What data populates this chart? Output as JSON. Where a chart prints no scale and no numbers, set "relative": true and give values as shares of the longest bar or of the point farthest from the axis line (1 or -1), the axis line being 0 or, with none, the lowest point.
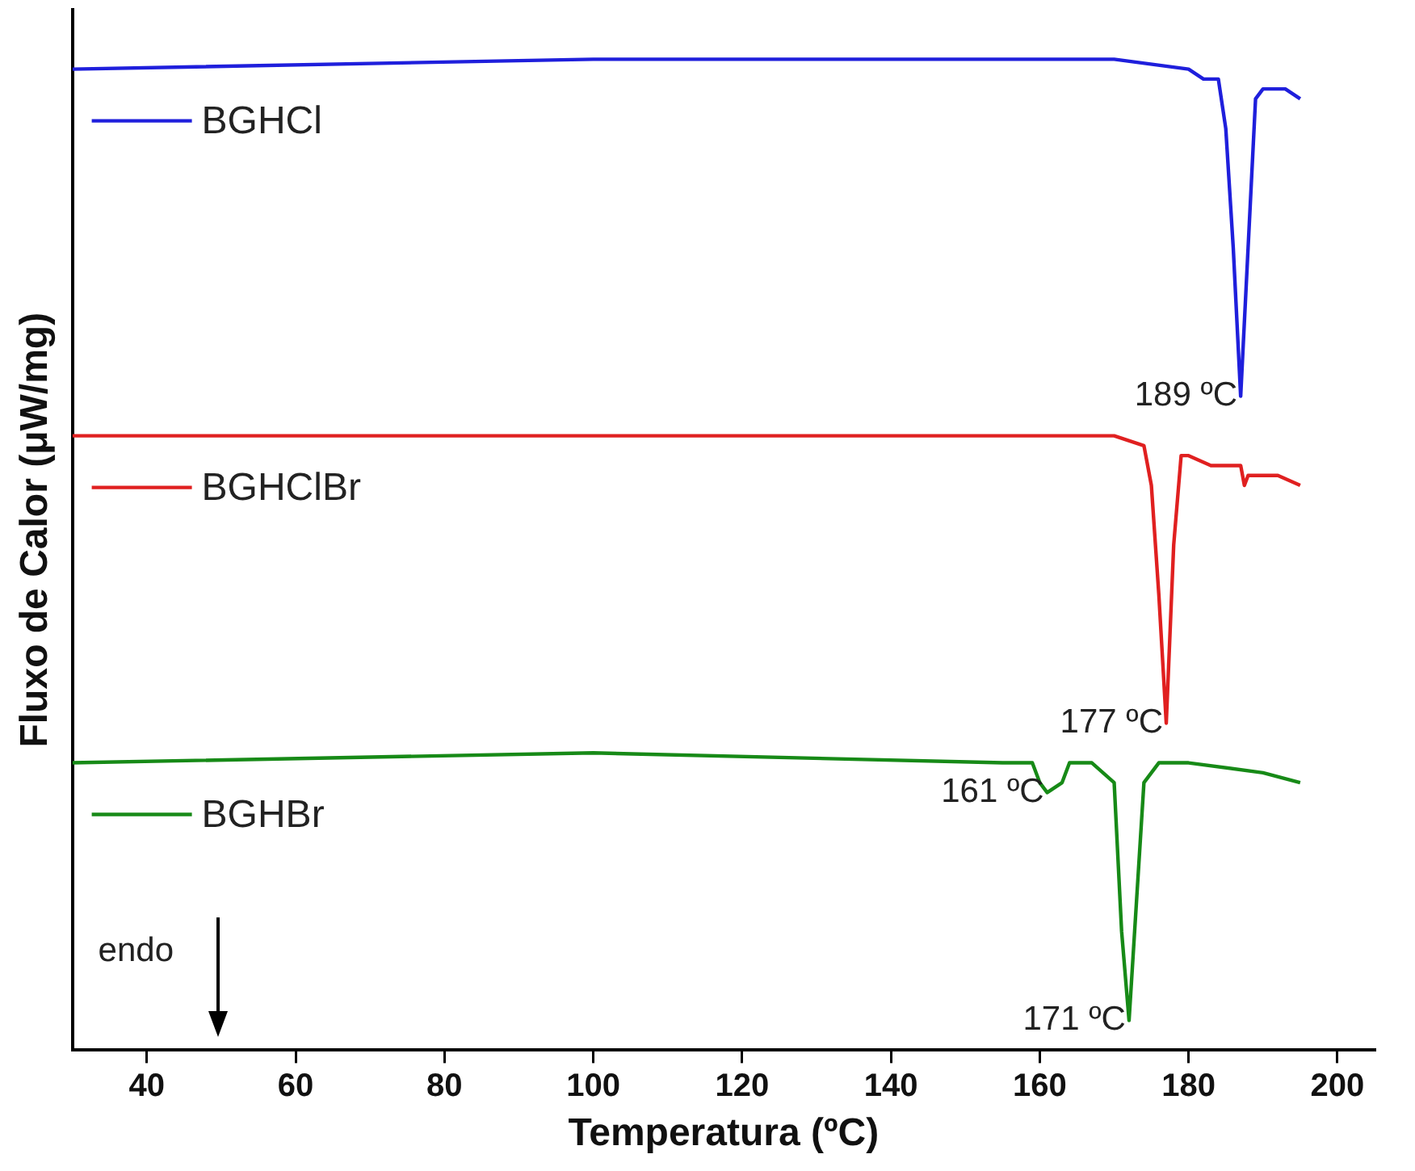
{
  "chart_data": {
    "type": "line",
    "xlabel": "Temperatura (ºC)",
    "ylabel": "Fluxo de Calor (μW/mg)",
    "relative": true,
    "xlim": [
      30,
      205
    ],
    "xticks": [
      40,
      60,
      80,
      100,
      120,
      140,
      160,
      180,
      200
    ],
    "grid": false,
    "legend": "top left",
    "marker": "none",
    "line_style": "solid",
    "series": [
      {
        "name": "BGHCl",
        "color": "#1f1fdc",
        "x": [
          30,
          100,
          170,
          180,
          182,
          184,
          185,
          186,
          187,
          188,
          189,
          190,
          191,
          193,
          195
        ],
        "values": [
          0.99,
          1.0,
          1.0,
          0.99,
          0.98,
          0.98,
          0.93,
          0.81,
          0.66,
          0.81,
          0.96,
          0.97,
          0.97,
          0.97,
          0.96
        ]
      },
      {
        "name": "BGHClBr",
        "color": "#e02020",
        "x": [
          30,
          100,
          170,
          174,
          175,
          176,
          177,
          178,
          179,
          180,
          183,
          187,
          187.5,
          188,
          192,
          195
        ],
        "values": [
          0.62,
          0.62,
          0.62,
          0.61,
          0.57,
          0.46,
          0.33,
          0.51,
          0.6,
          0.6,
          0.59,
          0.59,
          0.57,
          0.58,
          0.58,
          0.57
        ]
      },
      {
        "name": "BGHBr",
        "color": "#178a17",
        "x": [
          30,
          100,
          155,
          159,
          160,
          161,
          163,
          164,
          167,
          170,
          171,
          172,
          173,
          174,
          176,
          180,
          190,
          195
        ],
        "values": [
          0.29,
          0.3,
          0.29,
          0.29,
          0.27,
          0.26,
          0.27,
          0.29,
          0.29,
          0.27,
          0.12,
          0.03,
          0.15,
          0.27,
          0.29,
          0.29,
          0.28,
          0.27
        ]
      }
    ],
    "annotations": [
      {
        "text": "189 ºC",
        "x": 187,
        "y": 0.66
      },
      {
        "text": "177 ºC",
        "x": 177,
        "y": 0.33
      },
      {
        "text": "161 ºC",
        "x": 161,
        "y": 0.26
      },
      {
        "text": "171 ºC",
        "x": 172,
        "y": 0.03
      },
      "endo"
    ]
  }
}
